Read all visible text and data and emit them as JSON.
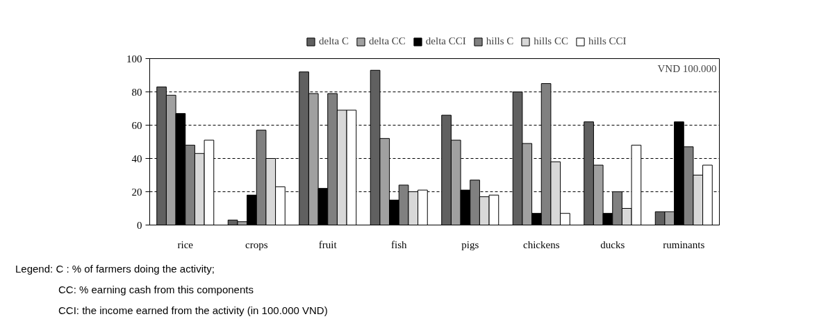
{
  "chart_data": {
    "type": "bar",
    "categories": [
      "rice",
      "crops",
      "fruit",
      "fish",
      "pigs",
      "chickens",
      "ducks",
      "ruminants"
    ],
    "series": [
      {
        "name": "delta C",
        "color": "#606060",
        "values": [
          83,
          3,
          92,
          93,
          66,
          80,
          62,
          8
        ]
      },
      {
        "name": "delta CC",
        "color": "#a0a0a0",
        "values": [
          78,
          2,
          79,
          52,
          51,
          49,
          36,
          8
        ]
      },
      {
        "name": "delta CCI",
        "color": "#000000",
        "values": [
          67,
          18,
          22,
          15,
          21,
          7,
          7,
          62
        ]
      },
      {
        "name": "hills C",
        "color": "#808080",
        "values": [
          48,
          57,
          79,
          24,
          27,
          85,
          20,
          47
        ]
      },
      {
        "name": "hills CC",
        "color": "#d8d8d8",
        "values": [
          43,
          40,
          69,
          20,
          17,
          38,
          10,
          30
        ]
      },
      {
        "name": "hills CCI",
        "color": "#ffffff",
        "values": [
          51,
          23,
          69,
          21,
          18,
          7,
          48,
          36
        ]
      }
    ],
    "ylim": [
      0,
      100
    ],
    "yticks": [
      0,
      20,
      40,
      60,
      80,
      100
    ],
    "grid": "y",
    "legend": "top",
    "annotations": [
      "VND 100.000",
      "Legend:  C : % of farmers doing the activity;",
      "CC: % earning cash from this components",
      "CCI: the income earned from the activity (in 100.000 VND)"
    ]
  }
}
